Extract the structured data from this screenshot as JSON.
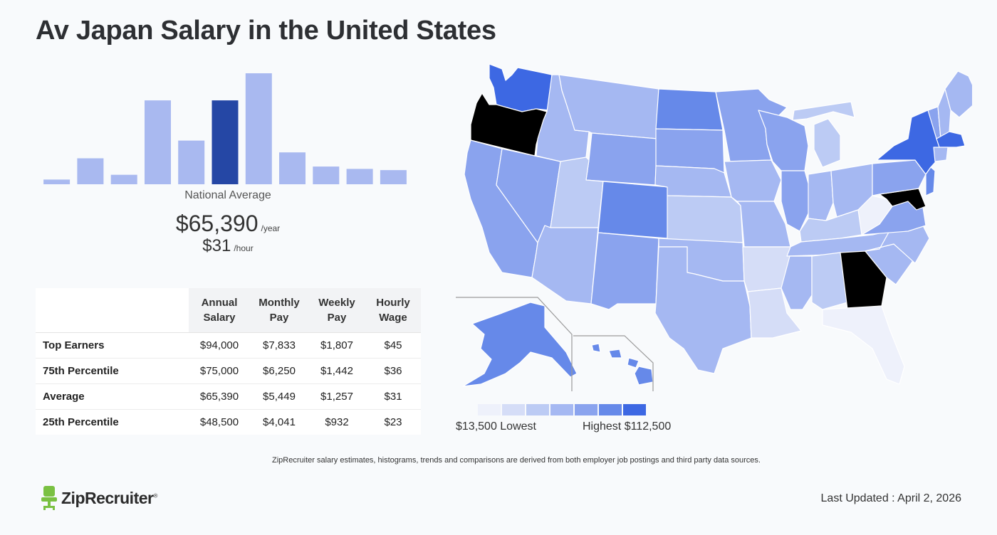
{
  "title": "Av Japan Salary in the United States",
  "chart_data": [
    {
      "type": "bar",
      "title": "Salary distribution histogram",
      "values": [
        4,
        22,
        8,
        71,
        37,
        71,
        94,
        27,
        15,
        13,
        12
      ],
      "highlight_index": 5,
      "ylim": [
        0,
        100
      ],
      "colors": {
        "bar": "#a9b9f0",
        "highlight": "#2547a5"
      }
    },
    {
      "type": "heatmap",
      "title": "Salary by state",
      "legend": {
        "low_label": "$13,500 Lowest",
        "high_label": "Highest $112,500",
        "swatches": [
          "#eef1fb",
          "#d5ddf7",
          "#bccbf4",
          "#a5b8f2",
          "#8aa3ee",
          "#6689e9",
          "#3d68e3"
        ]
      },
      "states": [
        {
          "code": "WA",
          "shade": 6
        },
        {
          "code": "OR",
          "shade": 7
        },
        {
          "code": "CA",
          "shade": 4
        },
        {
          "code": "NV",
          "shade": 4
        },
        {
          "code": "ID",
          "shade": 3
        },
        {
          "code": "MT",
          "shade": 3
        },
        {
          "code": "WY",
          "shade": 4
        },
        {
          "code": "UT",
          "shade": 2
        },
        {
          "code": "AZ",
          "shade": 3
        },
        {
          "code": "CO",
          "shade": 5
        },
        {
          "code": "NM",
          "shade": 4
        },
        {
          "code": "ND",
          "shade": 5
        },
        {
          "code": "SD",
          "shade": 4
        },
        {
          "code": "NE",
          "shade": 3
        },
        {
          "code": "KS",
          "shade": 2
        },
        {
          "code": "OK",
          "shade": 3
        },
        {
          "code": "TX",
          "shade": 3
        },
        {
          "code": "MN",
          "shade": 4
        },
        {
          "code": "IA",
          "shade": 3
        },
        {
          "code": "MO",
          "shade": 3
        },
        {
          "code": "AR",
          "shade": 1
        },
        {
          "code": "LA",
          "shade": 1
        },
        {
          "code": "WI",
          "shade": 4
        },
        {
          "code": "IL",
          "shade": 4
        },
        {
          "code": "MI",
          "shade": 2
        },
        {
          "code": "IN",
          "shade": 3
        },
        {
          "code": "OH",
          "shade": 3
        },
        {
          "code": "KY",
          "shade": 2
        },
        {
          "code": "TN",
          "shade": 3
        },
        {
          "code": "MS",
          "shade": 3
        },
        {
          "code": "AL",
          "shade": 2
        },
        {
          "code": "GA",
          "shade": 7
        },
        {
          "code": "FL",
          "shade": 0
        },
        {
          "code": "SC",
          "shade": 3
        },
        {
          "code": "NC",
          "shade": 3
        },
        {
          "code": "VA",
          "shade": 4
        },
        {
          "code": "WV",
          "shade": 0
        },
        {
          "code": "MD",
          "shade": 7
        },
        {
          "code": "PA",
          "shade": 4
        },
        {
          "code": "NY",
          "shade": 6
        },
        {
          "code": "NJ",
          "shade": 5
        },
        {
          "code": "ME",
          "shade": 3
        },
        {
          "code": "NH",
          "shade": 3
        },
        {
          "code": "VT",
          "shade": 4
        },
        {
          "code": "MA",
          "shade": 6
        },
        {
          "code": "CT",
          "shade": 3
        },
        {
          "code": "AK",
          "shade": 5
        },
        {
          "code": "HI",
          "shade": 5
        }
      ]
    }
  ],
  "histogram": {
    "label": "National Average"
  },
  "average": {
    "year_value": "$65,390",
    "year_unit": "/year",
    "hour_value": "$31",
    "hour_unit": "/hour"
  },
  "table": {
    "headers": [
      {
        "line1": "Annual",
        "line2": "Salary"
      },
      {
        "line1": "Monthly",
        "line2": "Pay"
      },
      {
        "line1": "Weekly",
        "line2": "Pay"
      },
      {
        "line1": "Hourly",
        "line2": "Wage"
      }
    ],
    "rows": [
      {
        "label": "Top Earners",
        "annual": "$94,000",
        "monthly": "$7,833",
        "weekly": "$1,807",
        "hourly": "$45"
      },
      {
        "label": "75th Percentile",
        "annual": "$75,000",
        "monthly": "$6,250",
        "weekly": "$1,442",
        "hourly": "$36"
      },
      {
        "label": "Average",
        "annual": "$65,390",
        "monthly": "$5,449",
        "weekly": "$1,257",
        "hourly": "$31"
      },
      {
        "label": "25th Percentile",
        "annual": "$48,500",
        "monthly": "$4,041",
        "weekly": "$932",
        "hourly": "$23"
      }
    ]
  },
  "footer": {
    "disclaimer": "ZipRecruiter salary estimates, histograms, trends and comparisons are derived from both employer job postings and third party data sources.",
    "logo_text": "ZipRecruiter",
    "logo_mark": "®",
    "last_updated": "Last Updated : April 2, 2026"
  },
  "colors": {
    "accent": "#2547a5",
    "map_peak": "#000000",
    "logo_green": "#7ac142"
  }
}
